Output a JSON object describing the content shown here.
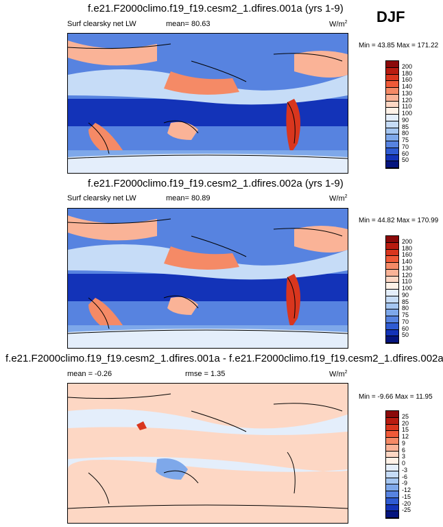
{
  "season": "DJF",
  "panels": [
    {
      "title": "f.e21.F2000climo.f19_f19.cesm2_1.dfires.001a (yrs 1-9)",
      "left_label": "Surf clearsky net LW",
      "center_label": "mean=  80.63",
      "units": "W/m",
      "units_sup": "2",
      "minmax": "Min =  43.85 Max = 171.22",
      "colorbar": {
        "labels": [
          "200",
          "180",
          "160",
          "140",
          "130",
          "120",
          "110",
          "100",
          "90",
          "85",
          "80",
          "75",
          "70",
          "60",
          "50"
        ],
        "colors": [
          "#8b0a0a",
          "#b81c10",
          "#d9361e",
          "#ef5a38",
          "#f58a66",
          "#fab397",
          "#fdd7c4",
          "#fff2e8",
          "#e4eefb",
          "#c6dcf7",
          "#a5c6f1",
          "#7ea8ea",
          "#5783e0",
          "#2f5bd2",
          "#1333b8",
          "#05157e"
        ]
      }
    },
    {
      "title": "f.e21.F2000climo.f19_f19.cesm2_1.dfires.002a (yrs 1-9)",
      "left_label": "Surf clearsky net LW",
      "center_label": "mean=  80.89",
      "units": "W/m",
      "units_sup": "2",
      "minmax": "Min =  44.82 Max = 170.99",
      "colorbar": {
        "labels": [
          "200",
          "180",
          "160",
          "140",
          "130",
          "120",
          "110",
          "100",
          "90",
          "85",
          "80",
          "75",
          "70",
          "60",
          "50"
        ],
        "colors": [
          "#8b0a0a",
          "#b81c10",
          "#d9361e",
          "#ef5a38",
          "#f58a66",
          "#fab397",
          "#fdd7c4",
          "#fff2e8",
          "#e4eefb",
          "#c6dcf7",
          "#a5c6f1",
          "#7ea8ea",
          "#5783e0",
          "#2f5bd2",
          "#1333b8",
          "#05157e"
        ]
      }
    },
    {
      "title": "f.e21.F2000climo.f19_f19.cesm2_1.dfires.001a - f.e21.F2000climo.f19_f19.cesm2_1.dfires.002a",
      "left_label": "mean =  -0.26",
      "center_label": "rmse =   1.35",
      "units": "W/m",
      "units_sup": "2",
      "minmax": "Min =  -9.66 Max = 11.95",
      "colorbar": {
        "labels": [
          "25",
          "20",
          "15",
          "12",
          "9",
          "6",
          "3",
          "0",
          "-3",
          "-6",
          "-9",
          "-12",
          "-15",
          "-20",
          "-25"
        ],
        "colors": [
          "#8b0a0a",
          "#b81c10",
          "#d9361e",
          "#ef5a38",
          "#f58a66",
          "#fab397",
          "#fdd7c4",
          "#fff2e8",
          "#e4eefb",
          "#c6dcf7",
          "#a5c6f1",
          "#7ea8ea",
          "#5783e0",
          "#2f5bd2",
          "#1333b8",
          "#05157e"
        ]
      }
    }
  ]
}
